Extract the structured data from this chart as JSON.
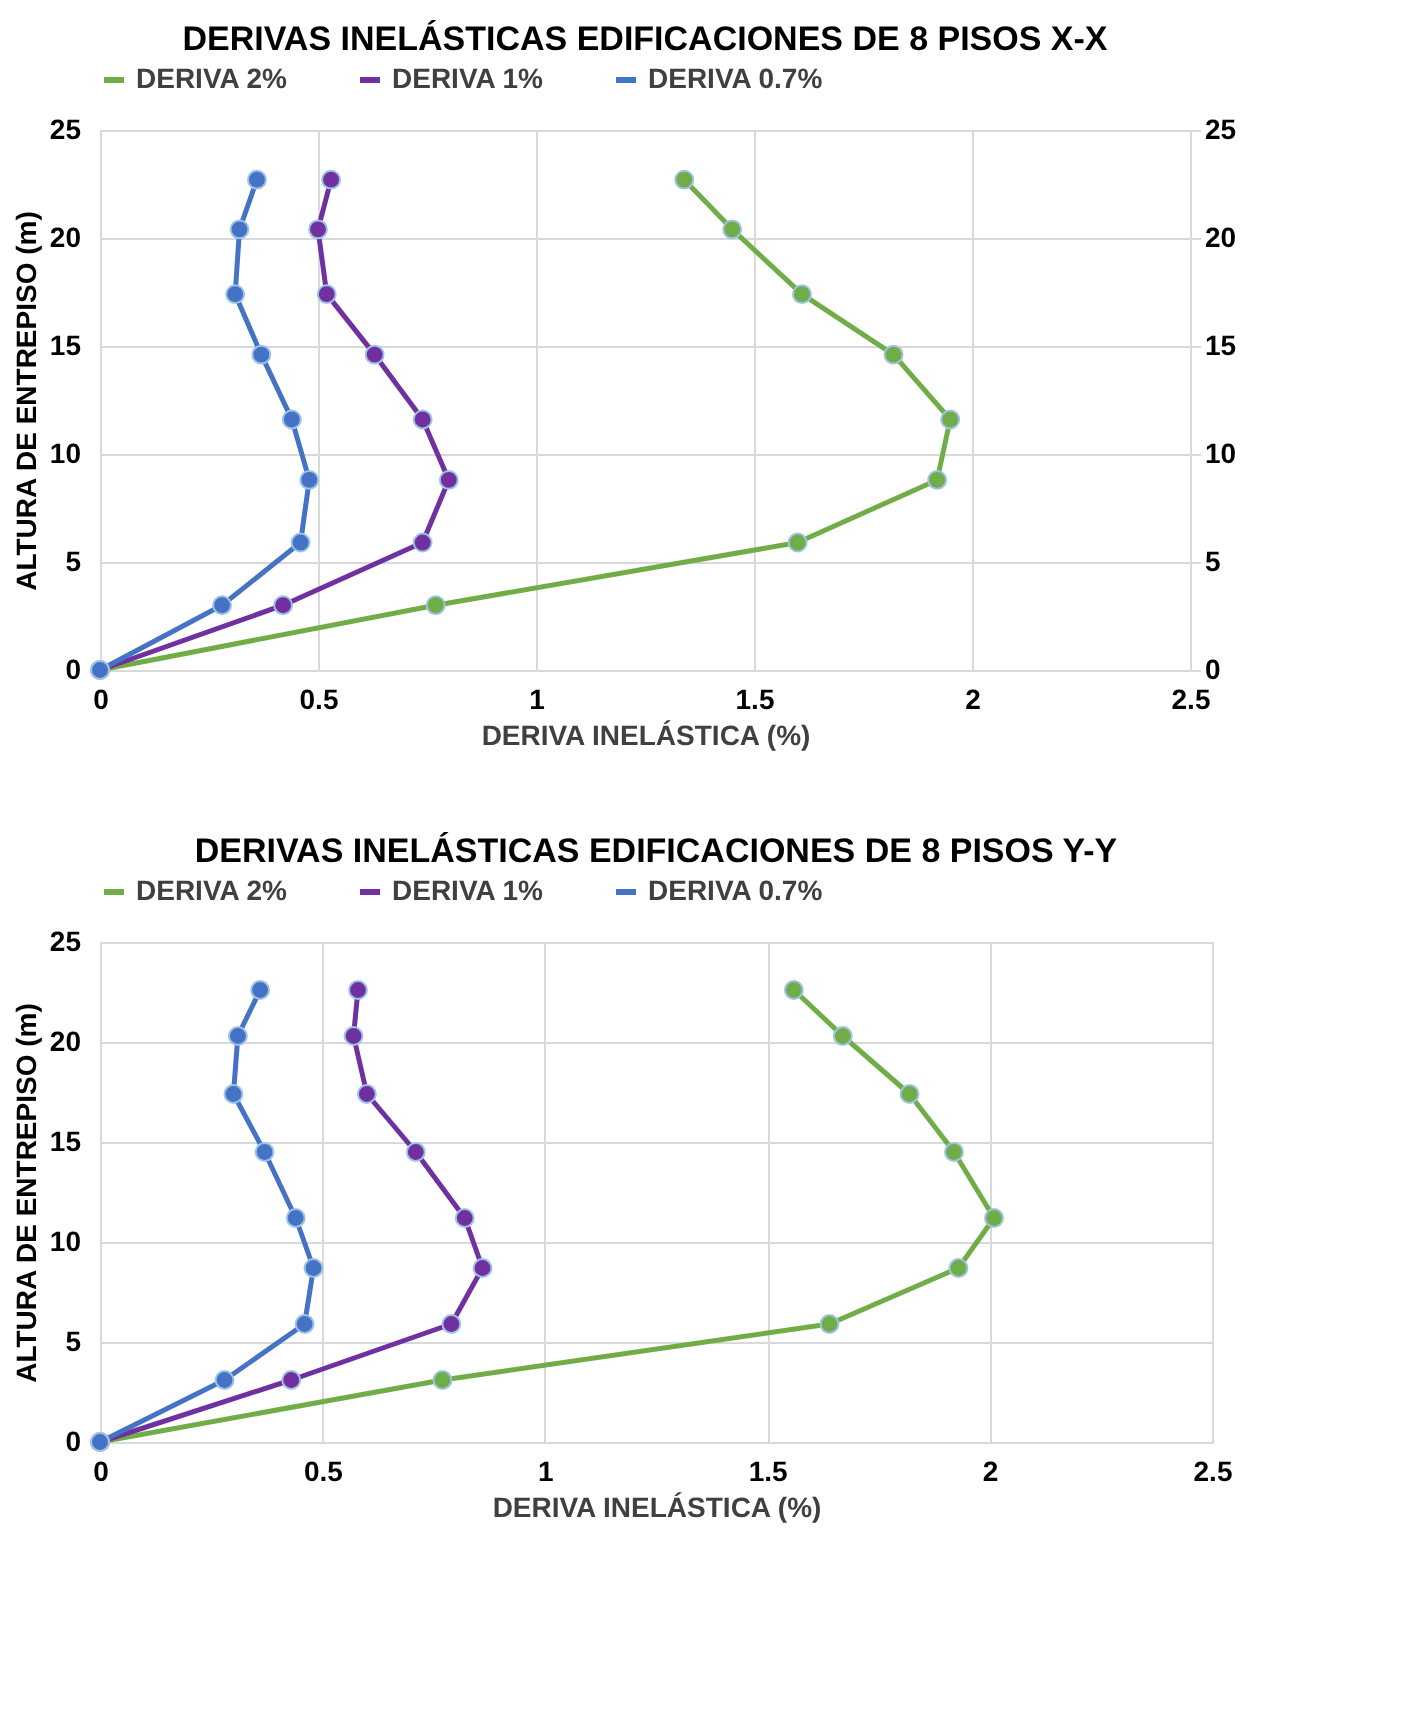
{
  "chart_data": [
    {
      "type": "line",
      "title": "DERIVAS INELÁSTICAS EDIFICACIONES DE 8 PISOS X-X",
      "xlabel": "DERIVA INELÁSTICA (%)",
      "ylabel": "ALTURA DE ENTREPISO (m)",
      "xlim": [
        0,
        2.5
      ],
      "xticks": [
        0,
        0.5,
        1,
        1.5,
        2,
        2.5
      ],
      "ylim": [
        0,
        25
      ],
      "yticks": [
        0,
        5,
        10,
        15,
        20,
        25
      ],
      "y2lim": [
        0,
        25
      ],
      "y2ticks": [
        0,
        5,
        10,
        15,
        20,
        25
      ],
      "grid": true,
      "legend": "top",
      "marker": "circle",
      "line_style": "solid",
      "series": [
        {
          "name": "DERIVA 2%",
          "color": "#70ad47",
          "x": [
            0,
            0.77,
            1.6,
            1.92,
            1.95,
            1.82,
            1.61,
            1.45,
            1.34
          ],
          "values": [
            0,
            3.0,
            5.9,
            8.8,
            11.6,
            14.6,
            17.4,
            20.4,
            22.7
          ]
        },
        {
          "name": "DERIVA 1%",
          "color": "#7030a0",
          "x": [
            0,
            0.42,
            0.74,
            0.8,
            0.74,
            0.63,
            0.52,
            0.5,
            0.53
          ],
          "values": [
            0,
            3.0,
            5.9,
            8.8,
            11.6,
            14.6,
            17.4,
            20.4,
            22.7
          ]
        },
        {
          "name": "DERIVA 0.7%",
          "color": "#4472c4",
          "x": [
            0,
            0.28,
            0.46,
            0.48,
            0.44,
            0.37,
            0.31,
            0.32,
            0.36
          ],
          "values": [
            0,
            3.0,
            5.9,
            8.8,
            11.6,
            14.6,
            17.4,
            20.4,
            22.7
          ]
        }
      ]
    },
    {
      "type": "line",
      "title": "DERIVAS INELÁSTICAS EDIFICACIONES DE 8 PISOS Y-Y",
      "xlabel": "DERIVA INELÁSTICA (%)",
      "ylabel": "ALTURA DE ENTREPISO (m)",
      "xlim": [
        0,
        2.5
      ],
      "xticks": [
        0,
        0.5,
        1,
        1.5,
        2,
        2.5
      ],
      "ylim": [
        0,
        25
      ],
      "yticks": [
        0,
        5,
        10,
        15,
        20,
        25
      ],
      "grid": true,
      "legend": "top",
      "marker": "circle",
      "line_style": "solid",
      "series": [
        {
          "name": "DERIVA 2%",
          "color": "#70ad47",
          "x": [
            0,
            0.77,
            1.64,
            1.93,
            2.01,
            1.92,
            1.82,
            1.67,
            1.56
          ],
          "values": [
            0,
            3.1,
            5.9,
            8.7,
            11.2,
            14.5,
            17.4,
            20.3,
            22.6
          ]
        },
        {
          "name": "DERIVA 1%",
          "color": "#7030a0",
          "x": [
            0,
            0.43,
            0.79,
            0.86,
            0.82,
            0.71,
            0.6,
            0.57,
            0.58
          ],
          "values": [
            0,
            3.1,
            5.9,
            8.7,
            11.2,
            14.5,
            17.4,
            20.3,
            22.6
          ]
        },
        {
          "name": "DERIVA 0.7%",
          "color": "#4472c4",
          "x": [
            0,
            0.28,
            0.46,
            0.48,
            0.44,
            0.37,
            0.3,
            0.31,
            0.36
          ],
          "values": [
            0,
            3.1,
            5.9,
            8.7,
            11.2,
            14.5,
            17.4,
            20.3,
            22.6
          ]
        }
      ]
    }
  ]
}
